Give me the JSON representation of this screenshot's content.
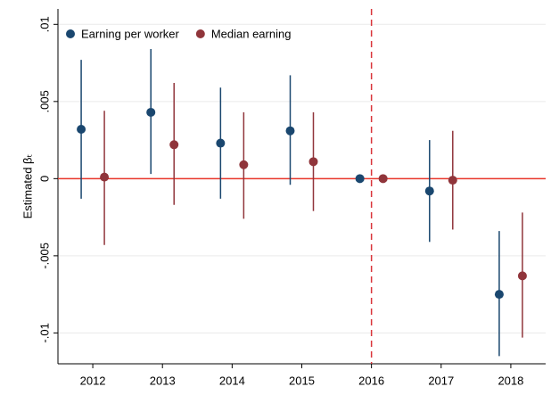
{
  "chart_data": {
    "type": "errorbar",
    "ylabel": "Estimated βₜ",
    "categories": [
      "2012",
      "2013",
      "2014",
      "2015",
      "2016",
      "2017",
      "2018"
    ],
    "series": [
      {
        "name": "Earning per worker",
        "color": "#1a476f",
        "values": [
          0.0032,
          0.0043,
          0.0023,
          0.0031,
          0,
          -0.0008,
          -0.0075
        ],
        "lower": [
          -0.0013,
          0.0003,
          -0.0013,
          -0.0004,
          null,
          -0.0041,
          -0.0115
        ],
        "upper": [
          0.0077,
          0.0084,
          0.0059,
          0.0067,
          null,
          0.0025,
          -0.0034
        ]
      },
      {
        "name": "Median earning",
        "color": "#90353b",
        "values": [
          0.0001,
          0.0022,
          0.0009,
          0.0011,
          0,
          -0.0001,
          -0.0063
        ],
        "lower": [
          -0.0043,
          -0.0017,
          -0.0026,
          -0.0021,
          null,
          -0.0033,
          -0.0103
        ],
        "upper": [
          0.0044,
          0.0062,
          0.0043,
          0.0043,
          null,
          0.0031,
          -0.0022
        ]
      }
    ],
    "ylim": [
      -0.012,
      0.011
    ],
    "yticks": [
      {
        "value": -0.01,
        "label": "-.01"
      },
      {
        "value": -0.005,
        "label": "-.005"
      },
      0,
      {
        "value": 0.005,
        "label": ".005"
      },
      {
        "value": 0.01,
        "label": ".01"
      }
    ],
    "grid": true,
    "hline": {
      "value": 0,
      "color": "#e8352a"
    },
    "vline": {
      "category": "2016",
      "color": "#d9343a"
    },
    "legend": "top-left"
  }
}
